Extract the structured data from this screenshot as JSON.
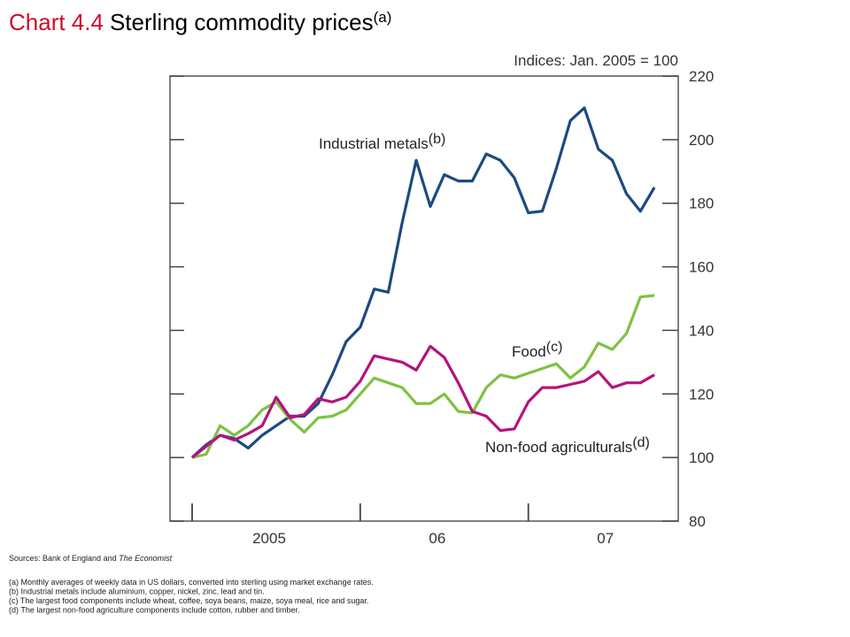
{
  "chart_data": {
    "type": "line",
    "title_number": "Chart 4.4",
    "title": "Sterling commodity prices",
    "title_note": "(a)",
    "y_axis_label": "Indices:  Jan. 2005 = 100",
    "x": [
      0,
      1,
      2,
      3,
      4,
      5,
      6,
      7,
      8,
      9,
      10,
      11,
      12,
      13,
      14,
      15,
      16,
      17,
      18,
      19,
      20,
      21,
      22,
      23,
      24,
      25,
      26,
      27,
      28,
      29,
      30,
      31,
      32,
      33
    ],
    "xlim": [
      -1.58,
      34.7
    ],
    "xticks": [
      0,
      12,
      24
    ],
    "year_labels": [
      {
        "value": 5.5,
        "label": "2005"
      },
      {
        "value": 17.5,
        "label": "06"
      },
      {
        "value": 29.5,
        "label": "07"
      }
    ],
    "ylim": [
      80,
      220
    ],
    "yticks": [
      80,
      100,
      120,
      140,
      160,
      180,
      200,
      220
    ],
    "series": [
      {
        "name": "Industrial metals",
        "note": "(b)",
        "color": "#1d4a80",
        "values": [
          100,
          104,
          107,
          106,
          103,
          107,
          110,
          113,
          113,
          117,
          126,
          136.5,
          141,
          153,
          152,
          174,
          193.5,
          179,
          189,
          187,
          187,
          195.5,
          193.5,
          188,
          177,
          177.5,
          191,
          206,
          210,
          197,
          193.5,
          183,
          177.5,
          185
        ]
      },
      {
        "name": "Food",
        "note": "(c)",
        "color": "#7dc242",
        "values": [
          100,
          101,
          110,
          107,
          110,
          115,
          117.5,
          112,
          108,
          112.5,
          113,
          115,
          120,
          125,
          123.5,
          122,
          117,
          117,
          120,
          114.5,
          114,
          122,
          126,
          125,
          126.5,
          128,
          129.5,
          125,
          128.5,
          136,
          134,
          139,
          150.5,
          151
        ]
      },
      {
        "name": "Non-food agriculturals",
        "note": "(d)",
        "color": "#b5137e",
        "values": [
          100,
          103.5,
          107,
          105.5,
          107.5,
          110,
          119,
          112.5,
          113.5,
          118.5,
          117.5,
          119,
          124,
          132,
          131,
          130,
          127.5,
          135,
          131.5,
          123.5,
          114.5,
          113,
          108.5,
          109,
          117.5,
          122,
          122,
          123,
          124,
          127,
          122,
          123.5,
          123.5,
          126
        ]
      }
    ],
    "sources": "Sources:  Bank of England and ",
    "sources_italic": "The Economist",
    "notes": [
      "(a)  Monthly averages of weekly data in US dollars, converted into sterling using market exchange rates.",
      "(b)  Industrial metals include aluminium, copper, nickel, zinc, lead and tin.",
      "(c)  The largest food components include wheat, coffee, soya beans, maize, soya meal, rice and sugar.",
      "(d)  The largest non-food agriculture components include cotton, rubber and timber."
    ]
  }
}
